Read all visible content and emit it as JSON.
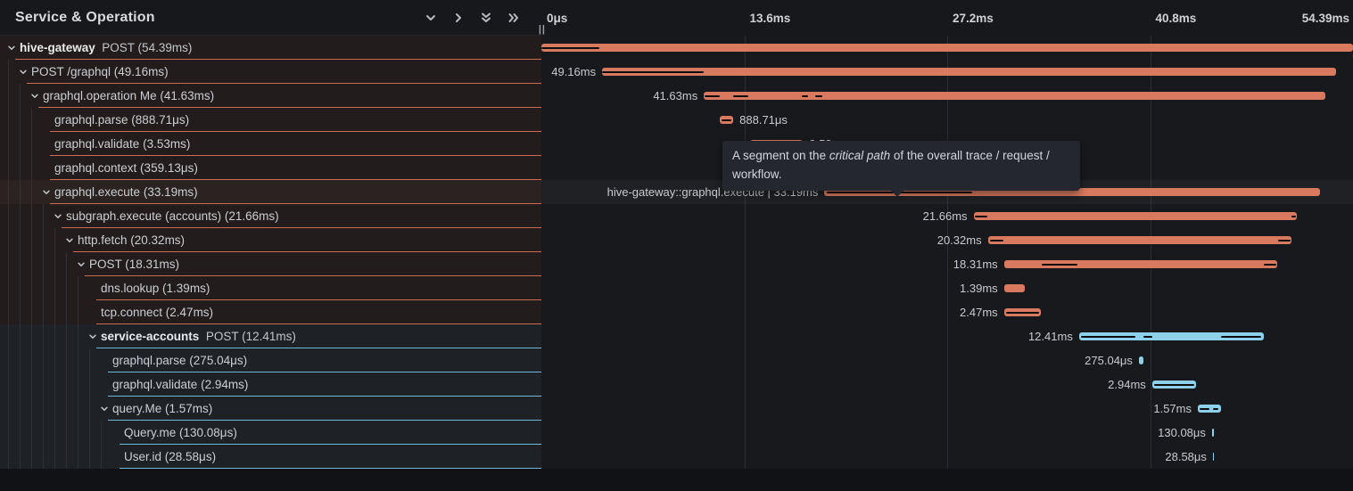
{
  "header": {
    "title": "Service & Operation",
    "icons": [
      {
        "name": "collapse-one-icon",
        "glyph": "chevron-down"
      },
      {
        "name": "expand-one-icon",
        "glyph": "chevron-right"
      },
      {
        "name": "collapse-all-icon",
        "glyph": "double-chevron-down"
      },
      {
        "name": "expand-all-icon",
        "glyph": "double-chevron-right"
      }
    ],
    "resize_handle": "||"
  },
  "axis": {
    "max_ms": 54.39,
    "ticks": [
      {
        "label": "0μs",
        "pct": 0,
        "align": "left"
      },
      {
        "label": "13.6ms",
        "pct": 25,
        "align": "left"
      },
      {
        "label": "27.2ms",
        "pct": 50,
        "align": "left"
      },
      {
        "label": "40.8ms",
        "pct": 75,
        "align": "left"
      },
      {
        "label": "54.39ms",
        "pct": 100,
        "align": "right"
      }
    ],
    "gridline_pcts": [
      25,
      50,
      75
    ]
  },
  "colors": {
    "salmon_bar": "#d97a60",
    "salmon_border": "#cc6b50",
    "blue_bar": "#8dd0e9",
    "blue_border": "#6fb9d8",
    "critical_path": "#0c0d0f"
  },
  "tooltip": {
    "lead": "A segment on the ",
    "em": "critical path",
    "tail": " of the overall trace / request / workflow."
  },
  "spans": [
    {
      "service": "hive-gateway",
      "name": "POST",
      "duration": "54.39ms",
      "depth": 0,
      "expandable": true,
      "svc": "a",
      "start": 0,
      "len": 54.39,
      "bar_label": "",
      "label_side": "none",
      "critical": [
        [
          0,
          3.9
        ]
      ],
      "highlight": false
    },
    {
      "service": null,
      "name": "POST /graphql",
      "duration": "49.16ms",
      "depth": 1,
      "expandable": true,
      "svc": "a",
      "start": 4.07,
      "len": 49.16,
      "bar_label": "49.16ms",
      "label_side": "left",
      "critical": [
        [
          4.07,
          10.9
        ]
      ],
      "highlight": false
    },
    {
      "service": null,
      "name": "graphql.operation Me",
      "duration": "41.63ms",
      "depth": 2,
      "expandable": true,
      "svc": "a",
      "start": 10.89,
      "len": 41.63,
      "bar_label": "41.63ms",
      "label_side": "left",
      "critical": [
        [
          10.95,
          11.97
        ],
        [
          12.86,
          13.88
        ],
        [
          17.47,
          17.89
        ],
        [
          18.37,
          18.85
        ]
      ],
      "highlight": false
    },
    {
      "service": null,
      "name": "graphql.parse",
      "duration": "888.71μs",
      "depth": 3,
      "expandable": false,
      "svc": "a",
      "start": 11.97,
      "len": 0.889,
      "bar_label": "888.71μs",
      "label_side": "right",
      "critical": [
        [
          12.08,
          12.72
        ]
      ],
      "highlight": false
    },
    {
      "service": null,
      "name": "graphql.validate",
      "duration": "3.53ms",
      "depth": 3,
      "expandable": false,
      "svc": "a",
      "start": 14.0,
      "len": 3.53,
      "bar_label": "3.53ms",
      "label_side": "right",
      "critical": [
        [
          14.12,
          17.38
        ]
      ],
      "highlight": false
    },
    {
      "service": null,
      "name": "graphql.context",
      "duration": "359.13μs",
      "depth": 3,
      "expandable": false,
      "svc": "a",
      "start": 17.59,
      "len": 0.359,
      "bar_label": "359.13μs",
      "label_side": "right",
      "critical": [],
      "highlight": false
    },
    {
      "service": null,
      "name": "graphql.execute",
      "duration": "33.19ms",
      "depth": 3,
      "expandable": true,
      "svc": "a",
      "start": 18.97,
      "len": 33.19,
      "bar_label": "hive-gateway::graphql.execute | 33.19ms",
      "label_side": "left",
      "critical": [
        [
          19.1,
          28.84
        ]
      ],
      "highlight": true
    },
    {
      "service": null,
      "name": "subgraph.execute (accounts)",
      "duration": "21.66ms",
      "depth": 4,
      "expandable": true,
      "svc": "a",
      "start": 28.96,
      "len": 21.66,
      "bar_label": "21.66ms",
      "label_side": "left",
      "critical": [
        [
          29.02,
          29.86
        ],
        [
          50.27,
          50.55
        ]
      ],
      "highlight": false
    },
    {
      "service": null,
      "name": "http.fetch",
      "duration": "20.32ms",
      "depth": 5,
      "expandable": true,
      "svc": "a",
      "start": 29.92,
      "len": 20.32,
      "bar_label": "20.32ms",
      "label_side": "left",
      "critical": [
        [
          30.04,
          30.94
        ],
        [
          49.37,
          50.2
        ]
      ],
      "highlight": false
    },
    {
      "service": null,
      "name": "POST",
      "duration": "18.31ms",
      "depth": 6,
      "expandable": true,
      "svc": "a",
      "start": 31.0,
      "len": 18.31,
      "bar_label": "18.31ms",
      "label_side": "left",
      "critical": [
        [
          33.51,
          35.9
        ],
        [
          48.41,
          49.25
        ]
      ],
      "highlight": false
    },
    {
      "service": null,
      "name": "dns.lookup",
      "duration": "1.39ms",
      "depth": 7,
      "expandable": false,
      "svc": "a",
      "start": 31.0,
      "len": 1.39,
      "bar_label": "1.39ms",
      "label_side": "left",
      "critical": [],
      "highlight": false
    },
    {
      "service": null,
      "name": "tcp.connect",
      "duration": "2.47ms",
      "depth": 7,
      "expandable": false,
      "svc": "a",
      "start": 31.0,
      "len": 2.47,
      "bar_label": "2.47ms",
      "label_side": "left",
      "critical": [
        [
          31.12,
          33.33
        ]
      ],
      "highlight": false
    },
    {
      "service": "service-accounts",
      "name": "POST",
      "duration": "12.41ms",
      "depth": 7,
      "expandable": true,
      "svc": "b",
      "start": 36.03,
      "len": 12.41,
      "bar_label": "12.41ms",
      "label_side": "left",
      "critical": [
        [
          36.15,
          39.82
        ],
        [
          40.36,
          40.96
        ],
        [
          45.54,
          48.23
        ]
      ],
      "highlight": false
    },
    {
      "service": null,
      "name": "graphql.parse",
      "duration": "275.04μs",
      "depth": 8,
      "expandable": false,
      "svc": "b",
      "start": 40.04,
      "len": 0.275,
      "bar_label": "275.04μs",
      "label_side": "left",
      "critical": [],
      "highlight": false
    },
    {
      "service": null,
      "name": "graphql.validate",
      "duration": "2.94ms",
      "depth": 8,
      "expandable": false,
      "svc": "b",
      "start": 40.93,
      "len": 2.94,
      "bar_label": "2.94ms",
      "label_side": "left",
      "critical": [
        [
          41.05,
          43.74
        ]
      ],
      "highlight": false
    },
    {
      "service": null,
      "name": "query.Me",
      "duration": "1.57ms",
      "depth": 8,
      "expandable": true,
      "svc": "b",
      "start": 43.99,
      "len": 1.57,
      "bar_label": "1.57ms",
      "label_side": "left",
      "critical": [
        [
          44.11,
          44.77
        ],
        [
          45.0,
          45.36
        ]
      ],
      "highlight": false
    },
    {
      "service": null,
      "name": "Query.me",
      "duration": "130.08μs",
      "depth": 9,
      "expandable": false,
      "svc": "b",
      "start": 44.94,
      "len": 0.13,
      "bar_label": "130.08μs",
      "label_side": "left",
      "critical": [],
      "highlight": false
    },
    {
      "service": null,
      "name": "User.id",
      "duration": "28.58μs",
      "depth": 9,
      "expandable": false,
      "svc": "b",
      "start": 45.0,
      "len": 0.029,
      "bar_label": "28.58μs",
      "label_side": "left",
      "critical": [],
      "highlight": false
    }
  ]
}
